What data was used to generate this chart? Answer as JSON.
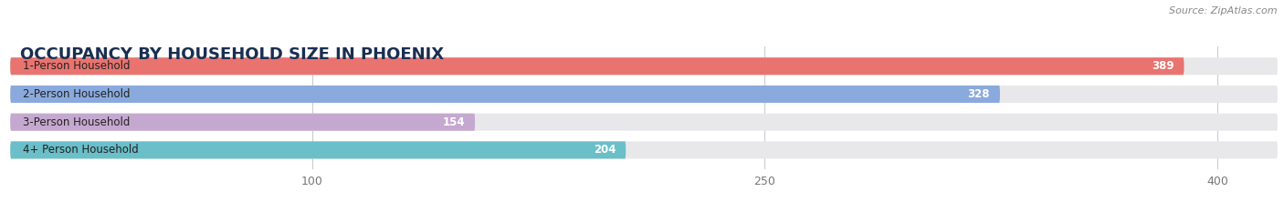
{
  "title": "OCCUPANCY BY HOUSEHOLD SIZE IN PHOENIX",
  "source": "Source: ZipAtlas.com",
  "categories": [
    "1-Person Household",
    "2-Person Household",
    "3-Person Household",
    "4+ Person Household"
  ],
  "values": [
    389,
    328,
    154,
    204
  ],
  "bar_colors": [
    "#e8736f",
    "#8aaade",
    "#c5a8d0",
    "#6abfc9"
  ],
  "bar_background": "#e8e8ea",
  "value_text_color": "#ffffff",
  "outside_value_color": "#777777",
  "xlim_max": 420,
  "xticks": [
    100,
    250,
    400
  ],
  "background_color": "#ffffff",
  "title_fontsize": 13,
  "bar_height": 0.62,
  "bar_gap": 1.0,
  "figsize": [
    14.06,
    2.33
  ],
  "dpi": 100
}
